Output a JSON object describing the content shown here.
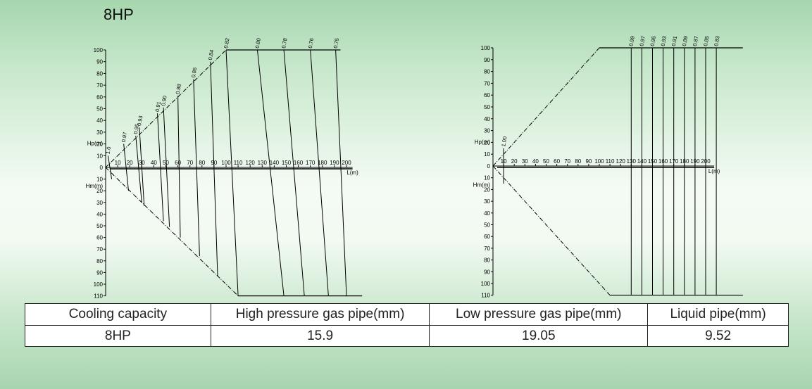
{
  "title": "8HP",
  "chart_data": [
    {
      "type": "line",
      "x_label": "L(m)",
      "y_label_up": "Hp(m)",
      "y_label_down": "Hm(m)",
      "x_ticks": [
        10,
        20,
        30,
        40,
        50,
        60,
        70,
        80,
        90,
        100,
        110,
        120,
        130,
        140,
        150,
        160,
        170,
        180,
        190,
        200
      ],
      "y_ticks_up": [
        10,
        20,
        30,
        40,
        50,
        60,
        70,
        80,
        90,
        100
      ],
      "y_ticks_down": [
        10,
        20,
        30,
        40,
        50,
        60,
        70,
        80,
        90,
        100,
        110
      ],
      "xlim": [
        0,
        200
      ],
      "ylim_up": [
        0,
        100
      ],
      "ylim_down": [
        0,
        110
      ],
      "envelope": {
        "up_corner": [
          100,
          100
        ],
        "down_corner": [
          110,
          110
        ]
      },
      "coefficient_lines": [
        {
          "label": "1.0",
          "up": [
            2,
            10
          ],
          "down": [
            5,
            10
          ]
        },
        {
          "label": "0.97",
          "up": [
            15,
            20
          ],
          "down": [
            19,
            20
          ]
        },
        {
          "label": "0.95",
          "up": [
            25,
            27
          ],
          "down": [
            30,
            30
          ]
        },
        {
          "label": "0.93",
          "up": [
            28,
            34
          ],
          "down": [
            32,
            33
          ]
        },
        {
          "label": "0.91",
          "up": [
            43,
            46
          ],
          "down": [
            48,
            46
          ]
        },
        {
          "label": "0.90",
          "up": [
            48,
            51
          ],
          "down": [
            53,
            51
          ]
        },
        {
          "label": "0.88",
          "up": [
            60,
            61
          ],
          "down": [
            62,
            60
          ]
        },
        {
          "label": "0.86",
          "up": [
            73,
            75
          ],
          "down": [
            78,
            76
          ]
        },
        {
          "label": "0.84",
          "up": [
            87,
            90
          ],
          "down": [
            93,
            93
          ]
        },
        {
          "label": "0.82",
          "up": [
            100,
            100
          ],
          "down": [
            110,
            110
          ]
        },
        {
          "label": "0.80",
          "up": [
            126,
            100
          ],
          "down": [
            148,
            110
          ]
        },
        {
          "label": "0.78",
          "up": [
            148,
            100
          ],
          "down": [
            165,
            110
          ]
        },
        {
          "label": "0.76",
          "up": [
            170,
            100
          ],
          "down": [
            185,
            110
          ]
        },
        {
          "label": "0.75",
          "up": [
            191,
            100
          ],
          "down": [
            200,
            110
          ]
        }
      ]
    },
    {
      "type": "line",
      "x_label": "L(m)",
      "y_label_up": "Hp(m)",
      "y_label_down": "Hm(m)",
      "x_ticks": [
        10,
        20,
        30,
        40,
        50,
        60,
        70,
        80,
        90,
        100,
        110,
        120,
        130,
        140,
        150,
        160,
        170,
        180,
        190,
        200
      ],
      "y_ticks_up": [
        10,
        20,
        30,
        40,
        50,
        60,
        70,
        80,
        90,
        100
      ],
      "y_ticks_down": [
        10,
        20,
        30,
        40,
        50,
        60,
        70,
        80,
        90,
        100,
        110
      ],
      "xlim": [
        0,
        200
      ],
      "ylim_up": [
        0,
        100
      ],
      "ylim_down": [
        0,
        110
      ],
      "envelope": {
        "up_corner": [
          100,
          100
        ],
        "down_corner": [
          110,
          110
        ]
      },
      "coefficient_lines": [
        {
          "label": "1.00",
          "up": [
            10,
            15
          ],
          "down": [
            10,
            15
          ]
        },
        {
          "label": "0.99",
          "up": [
            130,
            100
          ],
          "down": [
            130,
            110
          ]
        },
        {
          "label": "0.97",
          "up": [
            140,
            100
          ],
          "down": [
            140,
            110
          ]
        },
        {
          "label": "0.95",
          "up": [
            150,
            100
          ],
          "down": [
            150,
            110
          ]
        },
        {
          "label": "0.93",
          "up": [
            160,
            100
          ],
          "down": [
            160,
            110
          ]
        },
        {
          "label": "0.91",
          "up": [
            170,
            100
          ],
          "down": [
            170,
            110
          ]
        },
        {
          "label": "0.89",
          "up": [
            180,
            100
          ],
          "down": [
            180,
            110
          ]
        },
        {
          "label": "0.87",
          "up": [
            190,
            100
          ],
          "down": [
            190,
            110
          ]
        },
        {
          "label": "0.85",
          "up": [
            200,
            100
          ],
          "down": [
            200,
            110
          ]
        },
        {
          "label": "0.83",
          "up": [
            210,
            100
          ],
          "down": [
            210,
            110
          ]
        }
      ]
    }
  ],
  "table": {
    "headers": [
      "Cooling capacity",
      "High pressure gas pipe(mm)",
      "Low pressure gas pipe(mm)",
      "Liquid pipe(mm)"
    ],
    "row": [
      "8HP",
      "15.9",
      "19.05",
      "9.52"
    ]
  }
}
